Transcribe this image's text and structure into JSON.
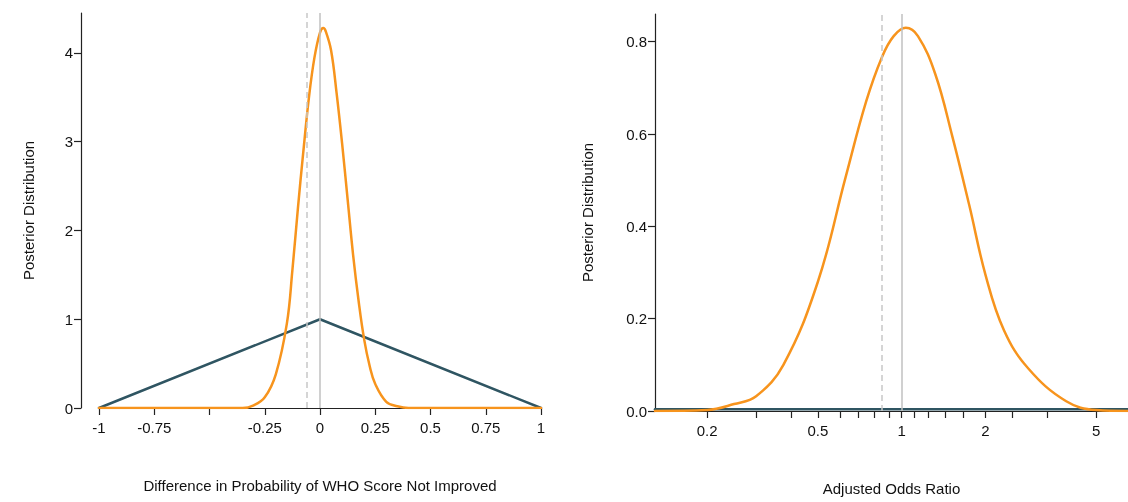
{
  "chart_data": [
    {
      "type": "line",
      "xlabel": "Difference in Probability of WHO Score Not Improved",
      "ylabel": "Posterior Distribution",
      "xlim": [
        -1,
        1
      ],
      "xticks": [
        -1,
        -0.75,
        {
          "value": -0.5,
          "label": null
        },
        -0.25,
        0,
        0.25,
        0.5,
        0.75,
        1
      ],
      "ylim": [
        0,
        4.45
      ],
      "yticks": [
        0,
        1,
        2,
        3,
        4
      ],
      "series": [
        {
          "color": "#2f5562",
          "x": [
            -1,
            0,
            1
          ],
          "values": [
            0,
            1,
            0
          ]
        },
        {
          "color": "#f7941d",
          "x": [
            -1,
            -0.4,
            -0.35,
            -0.3,
            -0.25,
            -0.2,
            -0.15,
            -0.125,
            -0.1,
            -0.075,
            -0.05,
            -0.025,
            0,
            0.015,
            0.025,
            0.05,
            0.075,
            0.1,
            0.125,
            0.15,
            0.175,
            0.2,
            0.225,
            0.25,
            0.3,
            0.35,
            0.4,
            1
          ],
          "values": [
            0,
            0,
            0,
            0.03,
            0.12,
            0.38,
            0.95,
            1.55,
            2.25,
            2.9,
            3.5,
            3.95,
            4.23,
            4.28,
            4.25,
            4.03,
            3.55,
            2.98,
            2.35,
            1.72,
            1.2,
            0.77,
            0.47,
            0.27,
            0.07,
            0.02,
            0,
            0
          ]
        }
      ],
      "ref_lines": [
        {
          "axis": "x",
          "value": 0,
          "color": "#c0c0c0",
          "line_style": "solid"
        },
        {
          "axis": "x",
          "value": -0.056,
          "color": "#c8c8c8",
          "line_style": "dashed"
        }
      ],
      "grid": false
    },
    {
      "type": "line",
      "xlabel": "Adjusted Odds Ratio",
      "ylabel": "Posterior Distribution",
      "log": "x",
      "xlim": [
        0.13,
        6.5
      ],
      "xticks": [
        0.2,
        {
          "value": 0.3,
          "label": null
        },
        {
          "value": 0.4,
          "label": null
        },
        0.5,
        {
          "value": 0.6,
          "label": null
        },
        {
          "value": 0.7,
          "label": null
        },
        {
          "value": 0.8,
          "label": null
        },
        {
          "value": 0.9,
          "label": null
        },
        1,
        {
          "value": 1.11,
          "label": null
        },
        {
          "value": 1.25,
          "label": null
        },
        {
          "value": 1.43,
          "label": null
        },
        {
          "value": 1.67,
          "label": null
        },
        2,
        {
          "value": 2.5,
          "label": null
        },
        {
          "value": 3.33,
          "label": null
        },
        5
      ],
      "ylim": [
        0,
        0.86
      ],
      "yticks": [
        {
          "value": 0,
          "label": "0.0"
        },
        0.2,
        0.4,
        0.6,
        0.8
      ],
      "series": [
        {
          "color": "#2f5562",
          "x": [
            0.13,
            6.5
          ],
          "values": [
            0.004,
            0.004
          ]
        },
        {
          "color": "#f7941d",
          "x": [
            0.13,
            0.2,
            0.25,
            0.3,
            0.376,
            0.5,
            0.628,
            0.745,
            0.85,
            0.936,
            1.035,
            1.144,
            1.32,
            1.52,
            1.75,
            2,
            2.33,
            2.85,
            3.9,
            5,
            6.5
          ],
          "values": [
            0,
            0.002,
            0.015,
            0.032,
            0.1,
            0.28,
            0.505,
            0.67,
            0.767,
            0.812,
            0.83,
            0.812,
            0.73,
            0.595,
            0.445,
            0.295,
            0.175,
            0.092,
            0.021,
            0.002,
            0
          ]
        }
      ],
      "ref_lines": [
        {
          "axis": "x",
          "value": 1,
          "color": "#c0c0c0",
          "line_style": "solid"
        },
        {
          "axis": "x",
          "value": 0.85,
          "color": "#c8c8c8",
          "line_style": "dashed"
        }
      ],
      "grid": false
    }
  ]
}
